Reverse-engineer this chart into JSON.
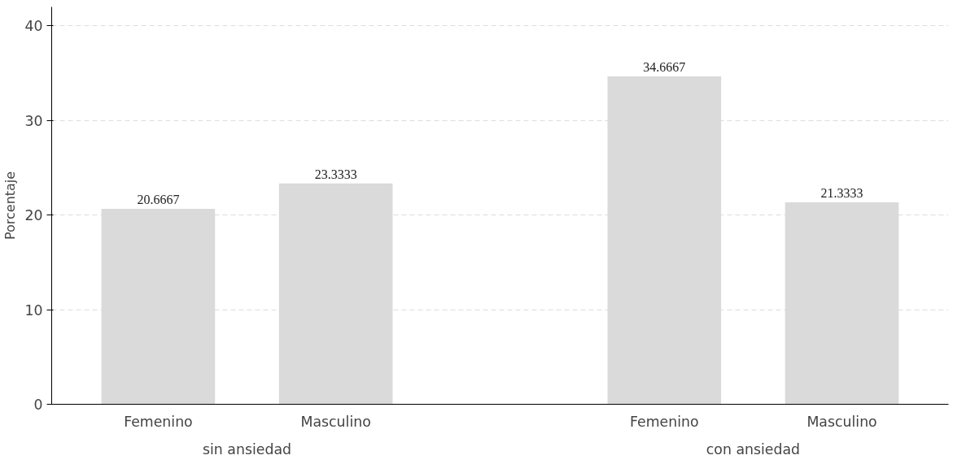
{
  "chart_data": {
    "type": "bar",
    "ylabel": "Porcentaje",
    "categories": [
      "Femenino",
      "Masculino",
      "Femenino",
      "Masculino"
    ],
    "values": [
      20.6667,
      23.3333,
      34.6667,
      21.3333
    ],
    "color": "#dadada",
    "annotations": [
      "sin ansiedad",
      "con ansiedad"
    ],
    "ylim": [
      0,
      42
    ],
    "yticks": [
      0,
      10,
      20,
      30,
      40
    ],
    "grid": "y",
    "data_labels": true
  }
}
